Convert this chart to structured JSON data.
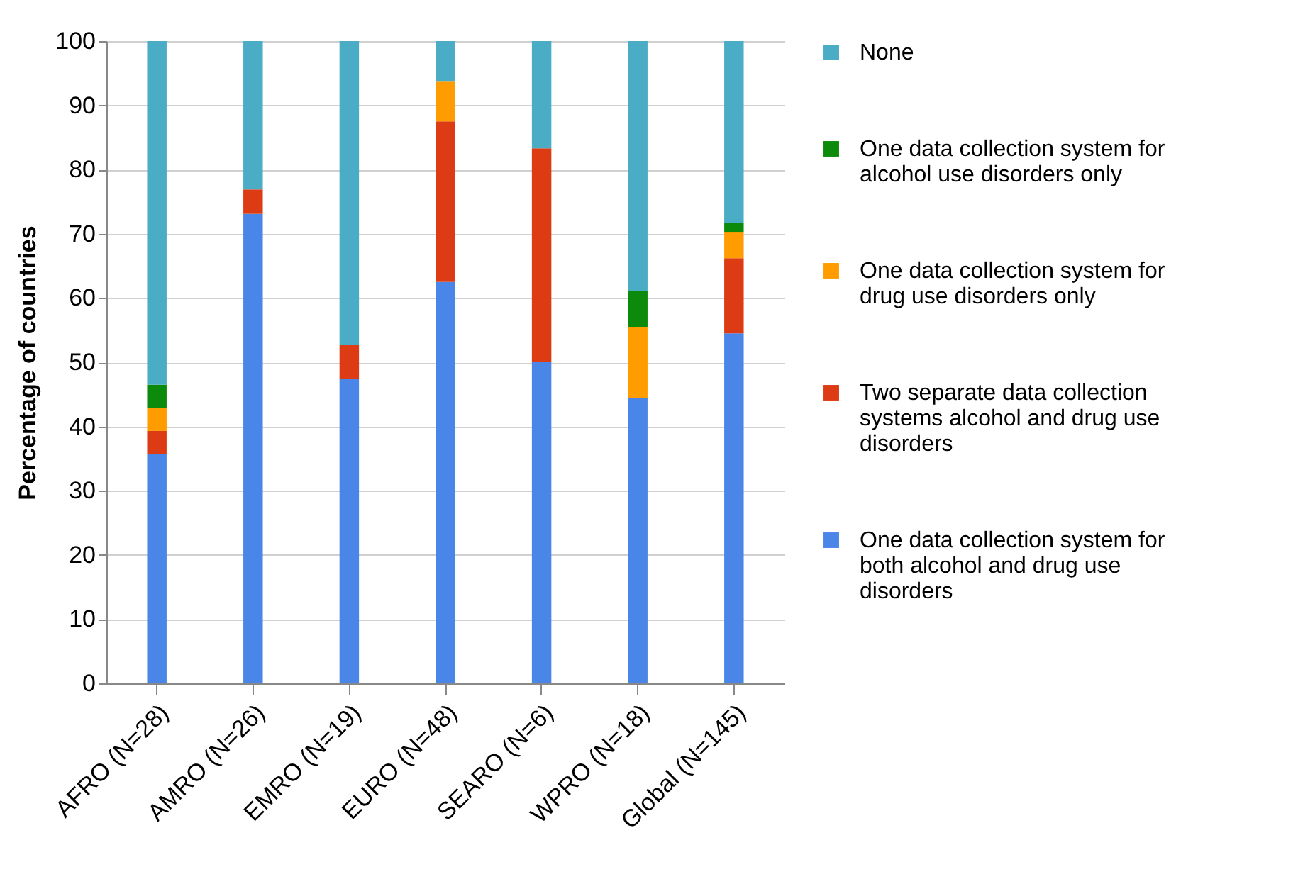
{
  "chart_data": {
    "type": "bar",
    "stacked": true,
    "ylabel": "Percentage of countries",
    "categories": [
      "AFRO (N=28)",
      "AMRO (N=26)",
      "EMRO (N=19)",
      "EURO (N=48)",
      "SEARO (N=6)",
      "WPRO (N=18)",
      "Global (N=145)"
    ],
    "series": [
      {
        "name": "One data collection system for both alcohol and drug use disorders",
        "color": "#4a86e8",
        "values": [
          35.7,
          73.1,
          47.4,
          62.5,
          50,
          44.4,
          54.5
        ]
      },
      {
        "name": "Two separate data collection systems alcohol and drug use disorders",
        "color": "#dc3b14",
        "values": [
          3.6,
          3.8,
          5.3,
          25,
          33.3,
          0,
          11.7
        ]
      },
      {
        "name": "One data collection system for drug use disorders only",
        "color": "#ff9d00",
        "values": [
          3.6,
          0,
          0,
          6.3,
          0,
          11.1,
          4.1
        ]
      },
      {
        "name": "One data collection system for alcohol use disorders only",
        "color": "#0b8a0b",
        "values": [
          3.6,
          0,
          0,
          0,
          0,
          5.6,
          1.4
        ]
      },
      {
        "name": "None",
        "color": "#4bacc6",
        "values": [
          53.5,
          23.1,
          47.3,
          6.2,
          16.7,
          38.9,
          28.3
        ]
      }
    ],
    "ylim": [
      0,
      100
    ],
    "yticks": [
      0,
      10,
      20,
      30,
      40,
      50,
      60,
      70,
      80,
      90,
      100
    ],
    "grid": "y",
    "legend": "right"
  }
}
